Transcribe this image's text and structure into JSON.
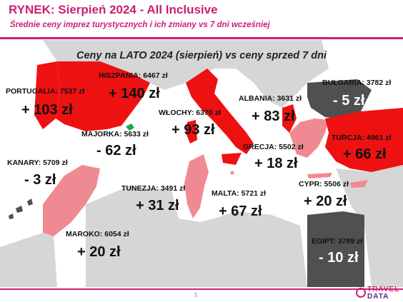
{
  "header": {
    "title": "RYNEK: Sierpień 2024 - All Inclusive",
    "subtitle": "Średnie ceny imprez turystycznych i ich zmiany vs 7 dni wcześniej"
  },
  "map_title": "Ceny na LATO 2024 (sierpień) vs ceny sprzed 7 dni",
  "colors": {
    "strong_increase": "#ee1111",
    "mild_increase": "#f08a92",
    "decrease": "#505050",
    "neutral_land": "#d6d6d6",
    "accent": "#cc1f74"
  },
  "destinations": [
    {
      "key": "portugalia",
      "label": "PORTUGALIA: 7537 zł",
      "change": "+ 103 zł"
    },
    {
      "key": "hiszpania",
      "label": "HISZPANIA: 6467 zł",
      "change": "+ 140 zł"
    },
    {
      "key": "majorka",
      "label": "MAJORKA: 5633 zł",
      "change": "- 62 zł"
    },
    {
      "key": "wlochy",
      "label": "WŁOCHY: 6370 zł",
      "change": "+ 93 zł"
    },
    {
      "key": "albania",
      "label": "ALBANIA: 3631 zł",
      "change": "+ 83 zł"
    },
    {
      "key": "bulgaria",
      "label": "BUŁGARIA: 3782 zł",
      "change": "- 5 zł"
    },
    {
      "key": "turcja",
      "label": "TURCJA: 4961 zł",
      "change": "+ 66 zł"
    },
    {
      "key": "grecja",
      "label": "GRECJA: 5502 zł",
      "change": "+ 18 zł"
    },
    {
      "key": "kanary",
      "label": "KANARY: 5709 zł",
      "change": "- 3 zł"
    },
    {
      "key": "tunezja",
      "label": "TUNEZJA: 3491 zł",
      "change": "+ 31 zł"
    },
    {
      "key": "malta",
      "label": "MALTA: 5721 zł",
      "change": "+ 67 zł"
    },
    {
      "key": "cypr",
      "label": "CYPR: 5506 zł",
      "change": "+ 20 zł"
    },
    {
      "key": "maroko",
      "label": "MAROKO: 6054 zł",
      "change": "+ 20 zł"
    },
    {
      "key": "egipt",
      "label": "EGIPT: 3789 zł",
      "change": "- 10 zł"
    }
  ],
  "footer": {
    "page_number": "5",
    "logo_top": "TRAVEL",
    "logo_bottom": "DATA"
  }
}
